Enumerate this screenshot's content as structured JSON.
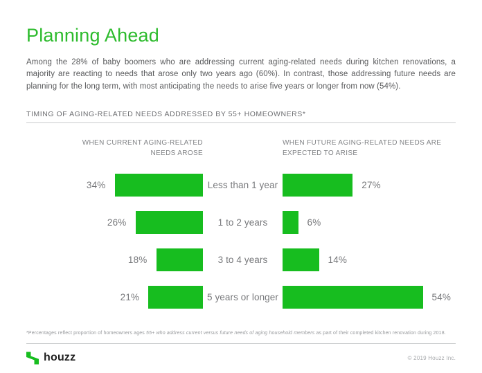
{
  "header": {
    "title": "Planning Ahead",
    "intro": "Among the 28% of baby boomers who are addressing current aging-related needs during kitchen renovations, a majority are reacting to needs that arose only two years ago (60%). In contrast, those addressing future needs are planning for the long term, with most anticipating the needs to arise five years or longer from now (54%)."
  },
  "section": {
    "title": "TIMING OF AGING-RELATED NEEDS ADDRESSED BY 55+ HOMEOWNERS*"
  },
  "chart_data": {
    "type": "bar",
    "layout": "butterfly",
    "title": "TIMING OF AGING-RELATED NEEDS ADDRESSED BY 55+ HOMEOWNERS",
    "categories": [
      "Less than 1 year",
      "1 to 2 years",
      "3 to 4 years",
      "5 years or longer"
    ],
    "series": [
      {
        "name": "WHEN CURRENT AGING-RELATED NEEDS AROSE",
        "side": "left",
        "values": [
          34,
          26,
          18,
          21
        ]
      },
      {
        "name": "WHEN FUTURE AGING-RELATED NEEDS ARE EXPECTED TO ARISE",
        "side": "right",
        "values": [
          27,
          6,
          14,
          54
        ]
      }
    ],
    "value_suffix": "%",
    "xlim": [
      0,
      60
    ],
    "grid": false,
    "bar_color": "#17BD1F"
  },
  "footnote": {
    "prefix": "*Percentages reflect proportion of homeowners ages ",
    "italic": "55+ who address current versus future needs of aging household members",
    "suffix": " as part of their completed kitchen renovation during 2018."
  },
  "footer": {
    "brand": "houzz",
    "copyright": "© 2019 Houzz Inc."
  },
  "colors": {
    "brand_green": "#17BD1F",
    "title_green": "#2DBB2D",
    "body_text": "#58595B",
    "label_text": "#77787B",
    "column_header_text": "#808285",
    "footnote_text": "#96989B"
  }
}
